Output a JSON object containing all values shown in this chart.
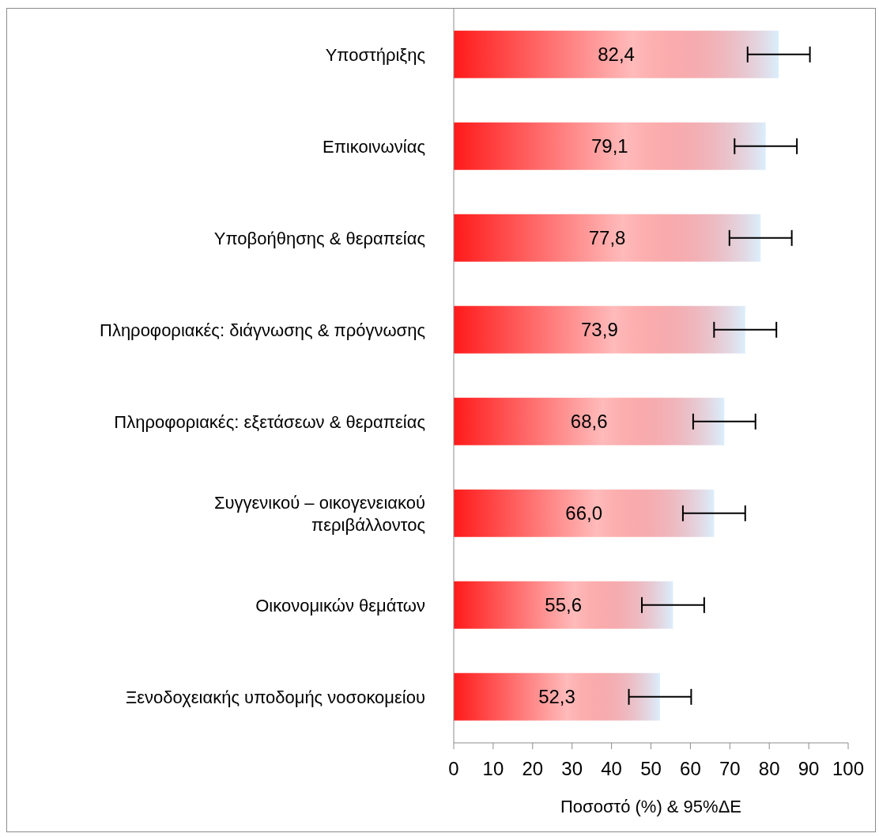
{
  "chart_data": {
    "type": "bar",
    "orientation": "horizontal",
    "xlabel": "Ποσοστό (%) & 95%ΔΕ",
    "categories": [
      "Υποστήριξης",
      "Επικοινωνίας",
      "Υποβοήθησης & θεραπείας",
      "Πληροφοριακές: διάγνωσης & πρόγνωσης",
      "Πληροφοριακές: εξετάσεων & θεραπείας",
      "Συγγενικού – οικογενειακού περιβάλλοντος",
      "Οικονομικών θεμάτων",
      "Ξενοδοχειακής υποδομής νοσοκομείου"
    ],
    "values": [
      82.4,
      79.1,
      77.8,
      73.9,
      68.6,
      66.0,
      55.6,
      52.3
    ],
    "value_labels": [
      "82,4",
      "79,1",
      "77,8",
      "73,9",
      "68,6",
      "66,0",
      "55,6",
      "52,3"
    ],
    "errors": [
      7.9,
      7.9,
      7.9,
      7.9,
      7.9,
      7.9,
      7.9,
      7.9
    ],
    "color": "#ff1a1a",
    "xlim": [
      0,
      100
    ],
    "xticks": [
      0,
      10,
      20,
      30,
      40,
      50,
      60,
      70,
      80,
      90,
      100
    ],
    "grid": false,
    "legend": false
  }
}
